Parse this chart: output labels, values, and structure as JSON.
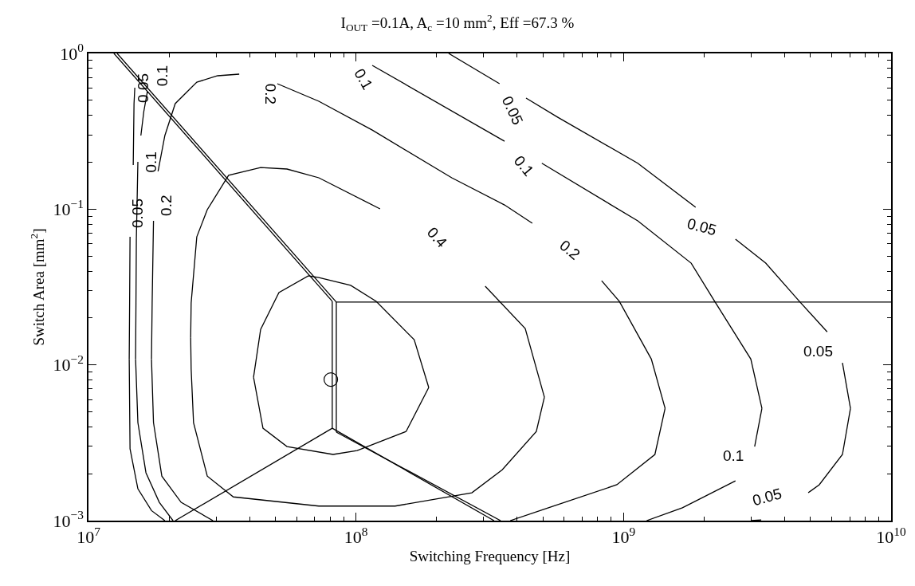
{
  "chart_data": {
    "type": "line",
    "title": "I$_{OUT}$ =0.1A, A$_{c}$ =10 mm$^{2}$, Eff =67.3 %",
    "xlabel": "Switching Frequency [Hz]",
    "ylabel": "Switch Area [mm$^{2}$]",
    "log": "xy",
    "line_style": "solid",
    "xlim": [
      10000000.0,
      10000000000.0
    ],
    "ylim": [
      0.001,
      1
    ],
    "xticks": [
      {
        "value": 10000000.0,
        "label": "10$^{7}$"
      },
      {
        "value": 20000000.0,
        "label": null
      },
      {
        "value": 30000000.0,
        "label": null
      },
      {
        "value": 40000000.0,
        "label": null
      },
      {
        "value": 50000000.0,
        "label": null
      },
      {
        "value": 60000000.0,
        "label": null
      },
      {
        "value": 70000000.0,
        "label": null
      },
      {
        "value": 80000000.0,
        "label": null
      },
      {
        "value": 90000000.0,
        "label": null
      },
      {
        "value": 100000000.0,
        "label": "10$^{8}$"
      },
      {
        "value": 200000000.0,
        "label": null
      },
      {
        "value": 300000000.0,
        "label": null
      },
      {
        "value": 400000000.0,
        "label": null
      },
      {
        "value": 500000000.0,
        "label": null
      },
      {
        "value": 600000000.0,
        "label": null
      },
      {
        "value": 700000000.0,
        "label": null
      },
      {
        "value": 800000000.0,
        "label": null
      },
      {
        "value": 900000000.0,
        "label": null
      },
      {
        "value": 1000000000.0,
        "label": "10$^{9}$"
      },
      {
        "value": 2000000000.0,
        "label": null
      },
      {
        "value": 3000000000.0,
        "label": null
      },
      {
        "value": 4000000000.0,
        "label": null
      },
      {
        "value": 5000000000.0,
        "label": null
      },
      {
        "value": 6000000000.0,
        "label": null
      },
      {
        "value": 7000000000.0,
        "label": null
      },
      {
        "value": 8000000000.0,
        "label": null
      },
      {
        "value": 9000000000.0,
        "label": null
      },
      {
        "value": 10000000000.0,
        "label": "10$^{10}$"
      }
    ],
    "yticks": [
      {
        "value": 0.001,
        "label": "10$^{−3}$"
      },
      {
        "value": 0.002,
        "label": null
      },
      {
        "value": 0.003,
        "label": null
      },
      {
        "value": 0.004,
        "label": null
      },
      {
        "value": 0.005,
        "label": null
      },
      {
        "value": 0.006,
        "label": null
      },
      {
        "value": 0.007,
        "label": null
      },
      {
        "value": 0.008,
        "label": null
      },
      {
        "value": 0.009,
        "label": null
      },
      {
        "value": 0.01,
        "label": "10$^{−2}$"
      },
      {
        "value": 0.02,
        "label": null
      },
      {
        "value": 0.03,
        "label": null
      },
      {
        "value": 0.04,
        "label": null
      },
      {
        "value": 0.05,
        "label": null
      },
      {
        "value": 0.06,
        "label": null
      },
      {
        "value": 0.07,
        "label": null
      },
      {
        "value": 0.08,
        "label": null
      },
      {
        "value": 0.09,
        "label": null
      },
      {
        "value": 0.1,
        "label": "10$^{−1}$"
      },
      {
        "value": 0.2,
        "label": null
      },
      {
        "value": 0.3,
        "label": null
      },
      {
        "value": 0.4,
        "label": null
      },
      {
        "value": 0.5,
        "label": null
      },
      {
        "value": 0.6,
        "label": null
      },
      {
        "value": 0.7,
        "label": null
      },
      {
        "value": 0.8,
        "label": null
      },
      {
        "value": 0.9,
        "label": null
      },
      {
        "value": 1,
        "label": "10$^{0}$"
      }
    ],
    "series": [
      {
        "type": "line",
        "color": "#000000",
        "x": [
          41400000.0,
          44000000.0,
          51500000.0,
          66400000.0,
          72600000.0,
          95500000.0,
          119000000.0,
          165000000.0,
          187000000.0,
          null,
          41400000.0,
          44900000.0,
          55200000.0,
          82100000.0,
          101000000.0,
          154000000.0,
          187000000.0
        ],
        "values": [
          0.00834,
          0.0169,
          0.0291,
          0.0373,
          0.0364,
          0.0324,
          0.0256,
          0.0145,
          0.00716,
          null,
          0.00834,
          0.00392,
          0.00299,
          0.00266,
          0.00282,
          0.00374,
          0.00716
        ]
      },
      {
        "type": "line",
        "color": "#000000",
        "x": [
          24100000.0,
          24200000.0,
          25400000.0,
          27800000.0,
          33400000.0,
          44000000.0,
          55200000.0,
          72600000.0,
          123000000.0,
          null,
          24100000.0,
          24200000.0,
          24700000.0,
          27800000.0,
          34800000.0,
          72600000.0,
          140000000.0,
          271000000.0,
          352000000.0,
          472000000.0,
          506000000.0,
          null,
          304000000.0,
          429000000.0,
          506000000.0
        ],
        "values": [
          0.015,
          0.025,
          0.0664,
          0.0992,
          0.165,
          0.185,
          0.181,
          0.159,
          0.1004,
          null,
          0.015,
          0.00938,
          0.00426,
          0.00193,
          0.00142,
          0.00124,
          0.00124,
          0.00151,
          0.00212,
          0.00374,
          0.00621,
          null,
          0.032,
          0.0171,
          0.00621
        ]
      },
      {
        "type": "line",
        "color": "#000000",
        "x": [
          17200000.0,
          17500000.0,
          18800000.0,
          22200000.0,
          29200000.0,
          null,
          17200000.0,
          17300000.0,
          17500000.0
        ],
        "values": [
          0.0109,
          0.00426,
          0.00193,
          0.00131,
          0.001,
          null,
          0.0109,
          0.025,
          0.0841
        ]
      },
      {
        "type": "line",
        "color": "#000000",
        "x": [
          18200000.0,
          19300000.0,
          21100000.0,
          25400000.0,
          30400000.0,
          36600000.0
        ],
        "values": [
          0.175,
          0.297,
          0.476,
          0.654,
          0.719,
          0.736
        ]
      },
      {
        "type": "line",
        "color": "#000000",
        "x": [
          50800000.0,
          72600000.0,
          115000000.0,
          228000000.0,
          359000000.0,
          456000000.0
        ],
        "values": [
          0.639,
          0.493,
          0.322,
          0.159,
          0.1064,
          0.0812
        ]
      },
      {
        "type": "line",
        "color": "#000000",
        "x": [
          828000000.0,
          964000000.0,
          1270000000.0,
          1430000000.0,
          null,
          377000000.0,
          524000000.0,
          944000000.0,
          1310000000.0,
          1430000000.0
        ],
        "values": [
          0.0347,
          0.0256,
          0.0109,
          0.00526,
          null,
          0.001,
          0.00121,
          0.0017,
          0.00266,
          0.00526
        ]
      },
      {
        "type": "line",
        "color": "#000000",
        "x": [
          15000000.0,
          15300000.0,
          16400000.0,
          18400000.0,
          20700000.0,
          null,
          15000000.0,
          15050000.0,
          15100000.0,
          15300000.0
        ],
        "values": [
          0.0109,
          0.00426,
          0.00203,
          0.00131,
          0.001,
          null,
          0.0109,
          0.025,
          0.0641,
          0.201
        ]
      },
      {
        "type": "line",
        "color": "#000000",
        "x": [
          15700000.0,
          16100000.0,
          16600000.0
        ],
        "values": [
          0.297,
          0.423,
          0.568
        ]
      },
      {
        "type": "line",
        "color": "#000000",
        "x": [
          115000000.0,
          359000000.0
        ],
        "values": [
          0.838,
          0.273
        ]
      },
      {
        "type": "line",
        "color": "#000000",
        "x": [
          495000000.0,
          1130000000.0,
          1790000000.0,
          2190000000.0,
          2990000000.0,
          3290000000.0,
          null,
          3090000000.0,
          3290000000.0
        ],
        "values": [
          0.197,
          0.0841,
          0.045,
          0.0256,
          0.0109,
          0.00526,
          null,
          0.00299,
          0.00526
        ]
      },
      {
        "type": "line",
        "color": "#000000",
        "x": [
          1220000000.0,
          1660000000.0,
          2620000000.0
        ],
        "values": [
          0.001,
          0.00121,
          0.0018
        ]
      },
      {
        "type": "line",
        "color": "#000000",
        "x": [
          14200000.0,
          14300000.0,
          15300000.0,
          17200000.0,
          19300000.0,
          null,
          14200000.0,
          14250000.0,
          14300000.0
        ],
        "values": [
          0.0109,
          0.00289,
          0.0016,
          0.00116,
          0.001,
          null,
          0.0109,
          0.025,
          0.0664
        ]
      },
      {
        "type": "line",
        "color": "#000000",
        "x": [
          14700000.0,
          14800000.0,
          14900000.0
        ],
        "values": [
          0.192,
          0.476,
          0.602
        ]
      },
      {
        "type": "line",
        "color": "#000000",
        "x": [
          222000000.0,
          344000000.0
        ],
        "values": [
          1,
          0.639
        ]
      },
      {
        "type": "line",
        "color": "#000000",
        "x": [
          432000000.0,
          568000000.0,
          1130000000.0,
          1860000000.0
        ],
        "values": [
          0.517,
          0.389,
          0.197,
          0.1028
        ]
      },
      {
        "type": "line",
        "color": "#000000",
        "x": [
          2620000000.0,
          3400000000.0,
          4540000000.0,
          5770000000.0
        ],
        "values": [
          0.0641,
          0.045,
          0.0256,
          0.0163
        ]
      },
      {
        "type": "line",
        "color": "#000000",
        "x": [
          6580000000.0,
          7050000000.0,
          null,
          4900000000.0,
          5390000000.0,
          6580000000.0,
          7050000000.0
        ],
        "values": [
          0.0103,
          0.00526,
          null,
          0.00151,
          0.0017,
          0.00266,
          0.00526
        ]
      },
      {
        "type": "line",
        "color": "#000000",
        "x": [
          2990000000.0,
          3270000000.0
        ],
        "values": [
          0.001,
          0.00101
        ]
      },
      {
        "type": "line",
        "color": "#000000",
        "x": [
          12800000.0,
          84400000.0,
          10000000000.0
        ],
        "values": [
          1,
          0.0253,
          0.0253
        ]
      },
      {
        "type": "line",
        "color": "#000000",
        "x": [
          12450000.0,
          81500000.0,
          null,
          81500000.0,
          81500000.0,
          null,
          81500000.0,
          328000000.0
        ],
        "values": [
          1,
          0.0256,
          null,
          0.0256,
          0.00392,
          null,
          0.00392,
          0.001
        ]
      },
      {
        "type": "line",
        "color": "#000000",
        "x": [
          84400000.0,
          84400000.0,
          null,
          84400000.0,
          347000000.0
        ],
        "values": [
          0.0253,
          0.0037,
          null,
          0.0037,
          0.001
        ]
      },
      {
        "type": "line",
        "color": "#000000",
        "x": [
          21100000.0,
          81500000.0
        ],
        "values": [
          0.001,
          0.00392
        ]
      },
      {
        "type": "scatter",
        "color": "#000000",
        "marker": "circle",
        "x": [
          80500000.0
        ],
        "values": [
          0.00805
        ]
      }
    ],
    "annotations": [
      "0.05",
      "0.1",
      "0.2",
      "0.05",
      "0.1",
      "0.2",
      "0.1",
      "0.05",
      "0.1",
      "0.4",
      "0.2",
      "0.05",
      "0.05",
      "0.1",
      "0.05"
    ]
  }
}
